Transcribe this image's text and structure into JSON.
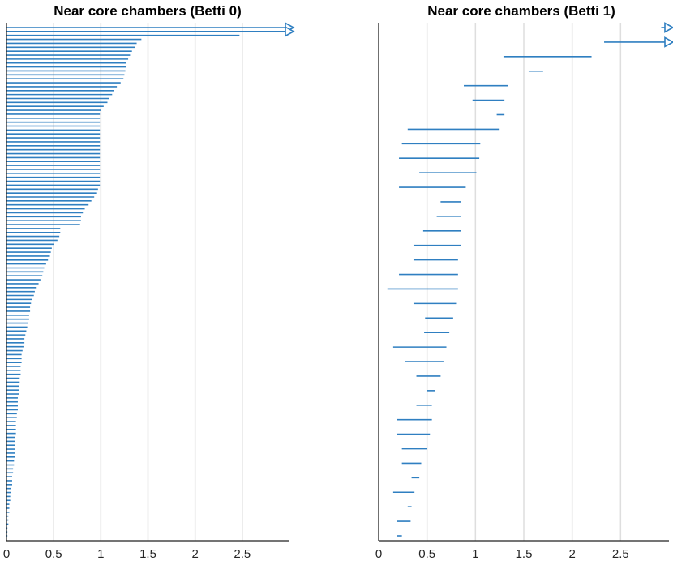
{
  "chart_data": [
    {
      "type": "barcode",
      "title": "Near core chambers (Betti 0)",
      "xlim": [
        0,
        3
      ],
      "xticks": [
        0,
        0.5,
        1,
        1.5,
        2,
        2.5
      ],
      "xtick_labels": [
        "0",
        "0.5",
        "1",
        "1.5",
        "2",
        "2.5"
      ],
      "grid": "vertical",
      "color": "#2f7fc1",
      "intervals": [
        [
          0,
          "inf"
        ],
        [
          0,
          "inf"
        ],
        [
          0,
          2.47
        ],
        [
          0,
          1.43
        ],
        [
          0,
          1.38
        ],
        [
          0,
          1.36
        ],
        [
          0,
          1.33
        ],
        [
          0,
          1.31
        ],
        [
          0,
          1.29
        ],
        [
          0,
          1.27
        ],
        [
          0,
          1.27
        ],
        [
          0,
          1.26
        ],
        [
          0,
          1.25
        ],
        [
          0,
          1.24
        ],
        [
          0,
          1.21
        ],
        [
          0,
          1.17
        ],
        [
          0,
          1.14
        ],
        [
          0,
          1.12
        ],
        [
          0,
          1.09
        ],
        [
          0,
          1.07
        ],
        [
          0,
          1.03
        ],
        [
          0,
          1.0
        ],
        [
          0,
          0.99
        ],
        [
          0,
          0.99
        ],
        [
          0,
          0.99
        ],
        [
          0,
          0.99
        ],
        [
          0,
          0.99
        ],
        [
          0,
          0.99
        ],
        [
          0,
          0.99
        ],
        [
          0,
          0.99
        ],
        [
          0,
          0.99
        ],
        [
          0,
          0.99
        ],
        [
          0,
          0.99
        ],
        [
          0,
          0.99
        ],
        [
          0,
          0.99
        ],
        [
          0,
          0.99
        ],
        [
          0,
          0.99
        ],
        [
          0,
          0.99
        ],
        [
          0,
          0.99
        ],
        [
          0,
          0.99
        ],
        [
          0,
          0.99
        ],
        [
          0,
          0.97
        ],
        [
          0,
          0.96
        ],
        [
          0,
          0.93
        ],
        [
          0,
          0.9
        ],
        [
          0,
          0.87
        ],
        [
          0,
          0.83
        ],
        [
          0,
          0.81
        ],
        [
          0,
          0.79
        ],
        [
          0,
          0.79
        ],
        [
          0,
          0.78
        ],
        [
          0,
          0.57
        ],
        [
          0,
          0.57
        ],
        [
          0,
          0.56
        ],
        [
          0,
          0.54
        ],
        [
          0,
          0.5
        ],
        [
          0,
          0.48
        ],
        [
          0,
          0.47
        ],
        [
          0,
          0.46
        ],
        [
          0,
          0.44
        ],
        [
          0,
          0.42
        ],
        [
          0,
          0.4
        ],
        [
          0,
          0.39
        ],
        [
          0,
          0.38
        ],
        [
          0,
          0.36
        ],
        [
          0,
          0.34
        ],
        [
          0,
          0.32
        ],
        [
          0,
          0.3
        ],
        [
          0,
          0.29
        ],
        [
          0,
          0.27
        ],
        [
          0,
          0.26
        ],
        [
          0,
          0.25
        ],
        [
          0,
          0.25
        ],
        [
          0,
          0.24
        ],
        [
          0,
          0.24
        ],
        [
          0,
          0.23
        ],
        [
          0,
          0.22
        ],
        [
          0,
          0.21
        ],
        [
          0,
          0.2
        ],
        [
          0,
          0.19
        ],
        [
          0,
          0.19
        ],
        [
          0,
          0.18
        ],
        [
          0,
          0.17
        ],
        [
          0,
          0.16
        ],
        [
          0,
          0.16
        ],
        [
          0,
          0.16
        ],
        [
          0,
          0.15
        ],
        [
          0,
          0.15
        ],
        [
          0,
          0.15
        ],
        [
          0,
          0.14
        ],
        [
          0,
          0.14
        ],
        [
          0,
          0.13
        ],
        [
          0,
          0.13
        ],
        [
          0,
          0.13
        ],
        [
          0,
          0.12
        ],
        [
          0,
          0.12
        ],
        [
          0,
          0.12
        ],
        [
          0,
          0.12
        ],
        [
          0,
          0.11
        ],
        [
          0,
          0.11
        ],
        [
          0,
          0.1
        ],
        [
          0,
          0.1
        ],
        [
          0,
          0.1
        ],
        [
          0,
          0.1
        ],
        [
          0,
          0.09
        ],
        [
          0,
          0.09
        ],
        [
          0,
          0.09
        ],
        [
          0,
          0.09
        ],
        [
          0,
          0.09
        ],
        [
          0,
          0.09
        ],
        [
          0,
          0.08
        ],
        [
          0,
          0.08
        ],
        [
          0,
          0.07
        ],
        [
          0,
          0.07
        ],
        [
          0,
          0.06
        ],
        [
          0,
          0.06
        ],
        [
          0,
          0.06
        ],
        [
          0,
          0.05
        ],
        [
          0,
          0.05
        ],
        [
          0,
          0.04
        ],
        [
          0,
          0.04
        ],
        [
          0,
          0.03
        ],
        [
          0,
          0.03
        ],
        [
          0,
          0.03
        ],
        [
          0,
          0.02
        ],
        [
          0,
          0.02
        ],
        [
          0,
          0.02
        ],
        [
          0,
          0.01
        ],
        [
          0,
          0.01
        ],
        [
          0,
          0.01
        ]
      ]
    },
    {
      "type": "barcode",
      "title": "Near core chambers (Betti 1)",
      "xlim": [
        0,
        3
      ],
      "xticks": [
        0,
        0.5,
        1,
        1.5,
        2,
        2.5
      ],
      "xtick_labels": [
        "0",
        "0.5",
        "1",
        "1.5",
        "2",
        "2.5"
      ],
      "grid": "vertical",
      "color": "#2f7fc1",
      "intervals": [
        [
          2.92,
          "inf"
        ],
        [
          2.33,
          "inf"
        ],
        [
          1.29,
          2.2
        ],
        [
          1.55,
          1.7
        ],
        [
          0.88,
          1.34
        ],
        [
          0.97,
          1.3
        ],
        [
          1.22,
          1.3
        ],
        [
          0.3,
          1.25
        ],
        [
          0.24,
          1.05
        ],
        [
          0.21,
          1.04
        ],
        [
          0.42,
          1.01
        ],
        [
          0.21,
          0.9
        ],
        [
          0.64,
          0.85
        ],
        [
          0.6,
          0.85
        ],
        [
          0.46,
          0.85
        ],
        [
          0.36,
          0.85
        ],
        [
          0.36,
          0.82
        ],
        [
          0.21,
          0.82
        ],
        [
          0.09,
          0.82
        ],
        [
          0.36,
          0.8
        ],
        [
          0.48,
          0.77
        ],
        [
          0.47,
          0.73
        ],
        [
          0.15,
          0.7
        ],
        [
          0.27,
          0.67
        ],
        [
          0.39,
          0.64
        ],
        [
          0.5,
          0.58
        ],
        [
          0.39,
          0.55
        ],
        [
          0.19,
          0.55
        ],
        [
          0.19,
          0.53
        ],
        [
          0.24,
          0.5
        ],
        [
          0.24,
          0.44
        ],
        [
          0.34,
          0.42
        ],
        [
          0.15,
          0.37
        ],
        [
          0.3,
          0.34
        ],
        [
          0.19,
          0.33
        ],
        [
          0.19,
          0.24
        ]
      ]
    }
  ]
}
